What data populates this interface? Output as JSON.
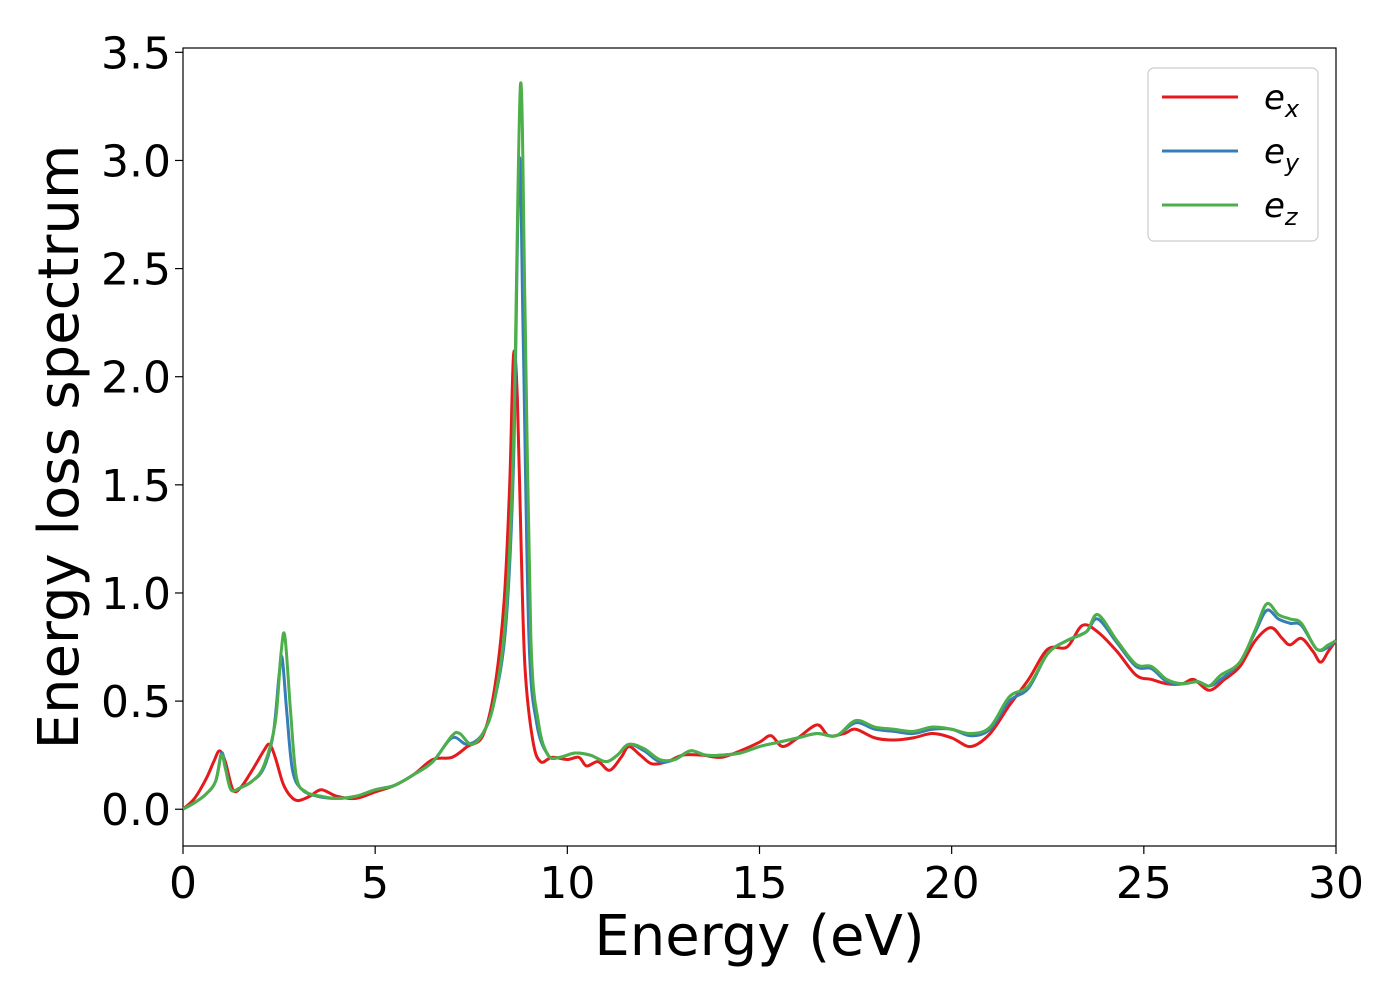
{
  "chart_data": {
    "type": "line",
    "title": "",
    "xlabel": "Energy (eV)",
    "ylabel": "Energy loss spectrum",
    "xlim": [
      0,
      30
    ],
    "ylim": [
      -0.17,
      3.52
    ],
    "xticks": [
      0,
      5,
      10,
      15,
      20,
      25,
      30
    ],
    "yticks": [
      0.0,
      0.5,
      1.0,
      1.5,
      2.0,
      2.5,
      3.0,
      3.5
    ],
    "xtick_labels": [
      "0",
      "5",
      "10",
      "15",
      "20",
      "25",
      "30"
    ],
    "ytick_labels": [
      "0.0",
      "0.5",
      "1.0",
      "1.5",
      "2.0",
      "2.5",
      "3.0",
      "3.5"
    ],
    "grid": false,
    "legend_position": "top-right",
    "series": [
      {
        "name": "e_x",
        "label_base": "e",
        "label_sub": "x",
        "color": "#e41a1c",
        "points": [
          [
            0,
            0
          ],
          [
            0.3,
            0.05
          ],
          [
            0.6,
            0.14
          ],
          [
            0.8,
            0.22
          ],
          [
            0.95,
            0.27
          ],
          [
            1.1,
            0.22
          ],
          [
            1.3,
            0.09
          ],
          [
            1.5,
            0.1
          ],
          [
            1.8,
            0.18
          ],
          [
            2.1,
            0.27
          ],
          [
            2.25,
            0.3
          ],
          [
            2.4,
            0.24
          ],
          [
            2.6,
            0.12
          ],
          [
            2.8,
            0.06
          ],
          [
            3.0,
            0.04
          ],
          [
            3.3,
            0.06
          ],
          [
            3.6,
            0.09
          ],
          [
            4.0,
            0.06
          ],
          [
            4.5,
            0.05
          ],
          [
            5.0,
            0.08
          ],
          [
            5.5,
            0.11
          ],
          [
            6.0,
            0.16
          ],
          [
            6.5,
            0.23
          ],
          [
            7.0,
            0.24
          ],
          [
            7.4,
            0.29
          ],
          [
            7.8,
            0.34
          ],
          [
            8.1,
            0.55
          ],
          [
            8.35,
            0.95
          ],
          [
            8.5,
            1.5
          ],
          [
            8.6,
            2.1
          ],
          [
            8.7,
            1.9
          ],
          [
            8.8,
            1.2
          ],
          [
            8.9,
            0.65
          ],
          [
            9.1,
            0.32
          ],
          [
            9.3,
            0.22
          ],
          [
            9.6,
            0.24
          ],
          [
            10.0,
            0.23
          ],
          [
            10.3,
            0.24
          ],
          [
            10.5,
            0.2
          ],
          [
            10.8,
            0.22
          ],
          [
            11.1,
            0.18
          ],
          [
            11.4,
            0.24
          ],
          [
            11.6,
            0.29
          ],
          [
            11.9,
            0.25
          ],
          [
            12.2,
            0.21
          ],
          [
            12.6,
            0.22
          ],
          [
            13.0,
            0.25
          ],
          [
            13.5,
            0.25
          ],
          [
            14.0,
            0.24
          ],
          [
            14.5,
            0.27
          ],
          [
            15.0,
            0.31
          ],
          [
            15.3,
            0.34
          ],
          [
            15.6,
            0.29
          ],
          [
            16.0,
            0.33
          ],
          [
            16.5,
            0.39
          ],
          [
            16.8,
            0.34
          ],
          [
            17.2,
            0.35
          ],
          [
            17.5,
            0.37
          ],
          [
            18.0,
            0.33
          ],
          [
            18.5,
            0.32
          ],
          [
            19.0,
            0.33
          ],
          [
            19.5,
            0.35
          ],
          [
            20.0,
            0.33
          ],
          [
            20.5,
            0.29
          ],
          [
            21.0,
            0.35
          ],
          [
            21.5,
            0.48
          ],
          [
            22.0,
            0.6
          ],
          [
            22.5,
            0.74
          ],
          [
            23.0,
            0.75
          ],
          [
            23.4,
            0.85
          ],
          [
            23.8,
            0.82
          ],
          [
            24.3,
            0.73
          ],
          [
            24.8,
            0.62
          ],
          [
            25.2,
            0.6
          ],
          [
            25.6,
            0.58
          ],
          [
            26.0,
            0.58
          ],
          [
            26.3,
            0.6
          ],
          [
            26.7,
            0.55
          ],
          [
            27.1,
            0.6
          ],
          [
            27.5,
            0.66
          ],
          [
            27.9,
            0.78
          ],
          [
            28.3,
            0.84
          ],
          [
            28.6,
            0.79
          ],
          [
            28.8,
            0.76
          ],
          [
            29.1,
            0.79
          ],
          [
            29.4,
            0.73
          ],
          [
            29.6,
            0.68
          ],
          [
            29.8,
            0.73
          ],
          [
            30.0,
            0.78
          ]
        ]
      },
      {
        "name": "e_y",
        "label_base": "e",
        "label_sub": "y",
        "color": "#377eb8",
        "points": [
          [
            0,
            0
          ],
          [
            0.3,
            0.03
          ],
          [
            0.6,
            0.07
          ],
          [
            0.85,
            0.13
          ],
          [
            1.0,
            0.26
          ],
          [
            1.1,
            0.2
          ],
          [
            1.25,
            0.09
          ],
          [
            1.5,
            0.1
          ],
          [
            1.8,
            0.13
          ],
          [
            2.1,
            0.19
          ],
          [
            2.35,
            0.35
          ],
          [
            2.5,
            0.62
          ],
          [
            2.58,
            0.7
          ],
          [
            2.7,
            0.45
          ],
          [
            2.85,
            0.18
          ],
          [
            3.1,
            0.09
          ],
          [
            3.5,
            0.06
          ],
          [
            4.0,
            0.05
          ],
          [
            4.5,
            0.06
          ],
          [
            5.0,
            0.09
          ],
          [
            5.5,
            0.11
          ],
          [
            6.0,
            0.16
          ],
          [
            6.5,
            0.22
          ],
          [
            7.0,
            0.33
          ],
          [
            7.4,
            0.3
          ],
          [
            7.8,
            0.35
          ],
          [
            8.1,
            0.5
          ],
          [
            8.4,
            0.85
          ],
          [
            8.6,
            1.6
          ],
          [
            8.75,
            3.0
          ],
          [
            8.85,
            2.2
          ],
          [
            9.0,
            0.8
          ],
          [
            9.2,
            0.4
          ],
          [
            9.5,
            0.25
          ],
          [
            9.8,
            0.24
          ],
          [
            10.2,
            0.26
          ],
          [
            10.6,
            0.25
          ],
          [
            11.0,
            0.22
          ],
          [
            11.3,
            0.25
          ],
          [
            11.6,
            0.3
          ],
          [
            12.0,
            0.27
          ],
          [
            12.4,
            0.22
          ],
          [
            12.8,
            0.23
          ],
          [
            13.2,
            0.27
          ],
          [
            13.6,
            0.25
          ],
          [
            14.0,
            0.25
          ],
          [
            14.5,
            0.26
          ],
          [
            15.0,
            0.29
          ],
          [
            15.5,
            0.31
          ],
          [
            16.0,
            0.33
          ],
          [
            16.5,
            0.35
          ],
          [
            17.0,
            0.34
          ],
          [
            17.5,
            0.4
          ],
          [
            18.0,
            0.37
          ],
          [
            18.5,
            0.36
          ],
          [
            19.0,
            0.35
          ],
          [
            19.5,
            0.37
          ],
          [
            20.0,
            0.37
          ],
          [
            20.5,
            0.34
          ],
          [
            21.0,
            0.37
          ],
          [
            21.5,
            0.5
          ],
          [
            22.0,
            0.56
          ],
          [
            22.5,
            0.72
          ],
          [
            23.0,
            0.78
          ],
          [
            23.5,
            0.82
          ],
          [
            23.8,
            0.88
          ],
          [
            24.3,
            0.77
          ],
          [
            24.8,
            0.66
          ],
          [
            25.2,
            0.65
          ],
          [
            25.6,
            0.59
          ],
          [
            26.0,
            0.58
          ],
          [
            26.4,
            0.59
          ],
          [
            26.7,
            0.57
          ],
          [
            27.0,
            0.6
          ],
          [
            27.5,
            0.68
          ],
          [
            27.9,
            0.82
          ],
          [
            28.2,
            0.92
          ],
          [
            28.5,
            0.88
          ],
          [
            28.8,
            0.86
          ],
          [
            29.1,
            0.85
          ],
          [
            29.5,
            0.74
          ],
          [
            29.8,
            0.75
          ],
          [
            30.0,
            0.78
          ]
        ]
      },
      {
        "name": "e_z",
        "label_base": "e",
        "label_sub": "z",
        "color": "#4daf4a",
        "points": [
          [
            0,
            0
          ],
          [
            0.3,
            0.03
          ],
          [
            0.6,
            0.07
          ],
          [
            0.85,
            0.13
          ],
          [
            1.0,
            0.25
          ],
          [
            1.1,
            0.19
          ],
          [
            1.25,
            0.09
          ],
          [
            1.5,
            0.1
          ],
          [
            1.8,
            0.13
          ],
          [
            2.1,
            0.2
          ],
          [
            2.4,
            0.4
          ],
          [
            2.55,
            0.72
          ],
          [
            2.65,
            0.8
          ],
          [
            2.8,
            0.45
          ],
          [
            2.95,
            0.15
          ],
          [
            3.2,
            0.08
          ],
          [
            3.6,
            0.06
          ],
          [
            4.0,
            0.05
          ],
          [
            4.5,
            0.06
          ],
          [
            5.0,
            0.09
          ],
          [
            5.5,
            0.11
          ],
          [
            6.0,
            0.16
          ],
          [
            6.5,
            0.22
          ],
          [
            7.0,
            0.34
          ],
          [
            7.2,
            0.35
          ],
          [
            7.5,
            0.3
          ],
          [
            7.8,
            0.35
          ],
          [
            8.1,
            0.5
          ],
          [
            8.4,
            0.9
          ],
          [
            8.6,
            1.7
          ],
          [
            8.78,
            3.35
          ],
          [
            8.9,
            2.3
          ],
          [
            9.05,
            0.8
          ],
          [
            9.25,
            0.4
          ],
          [
            9.5,
            0.25
          ],
          [
            9.8,
            0.24
          ],
          [
            10.2,
            0.26
          ],
          [
            10.6,
            0.25
          ],
          [
            11.0,
            0.22
          ],
          [
            11.3,
            0.25
          ],
          [
            11.6,
            0.3
          ],
          [
            12.0,
            0.28
          ],
          [
            12.4,
            0.23
          ],
          [
            12.8,
            0.23
          ],
          [
            13.2,
            0.27
          ],
          [
            13.6,
            0.25
          ],
          [
            14.0,
            0.25
          ],
          [
            14.5,
            0.26
          ],
          [
            15.0,
            0.29
          ],
          [
            15.5,
            0.31
          ],
          [
            16.0,
            0.33
          ],
          [
            16.5,
            0.35
          ],
          [
            17.0,
            0.34
          ],
          [
            17.5,
            0.41
          ],
          [
            18.0,
            0.38
          ],
          [
            18.5,
            0.37
          ],
          [
            19.0,
            0.36
          ],
          [
            19.5,
            0.38
          ],
          [
            20.0,
            0.37
          ],
          [
            20.5,
            0.35
          ],
          [
            21.0,
            0.38
          ],
          [
            21.5,
            0.52
          ],
          [
            22.0,
            0.57
          ],
          [
            22.5,
            0.72
          ],
          [
            23.0,
            0.78
          ],
          [
            23.5,
            0.82
          ],
          [
            23.8,
            0.9
          ],
          [
            24.3,
            0.78
          ],
          [
            24.8,
            0.67
          ],
          [
            25.2,
            0.66
          ],
          [
            25.6,
            0.6
          ],
          [
            26.0,
            0.58
          ],
          [
            26.4,
            0.59
          ],
          [
            26.7,
            0.57
          ],
          [
            27.0,
            0.62
          ],
          [
            27.5,
            0.68
          ],
          [
            27.9,
            0.83
          ],
          [
            28.2,
            0.95
          ],
          [
            28.5,
            0.9
          ],
          [
            28.8,
            0.88
          ],
          [
            29.1,
            0.86
          ],
          [
            29.5,
            0.74
          ],
          [
            29.8,
            0.76
          ],
          [
            30.0,
            0.78
          ]
        ]
      }
    ]
  }
}
